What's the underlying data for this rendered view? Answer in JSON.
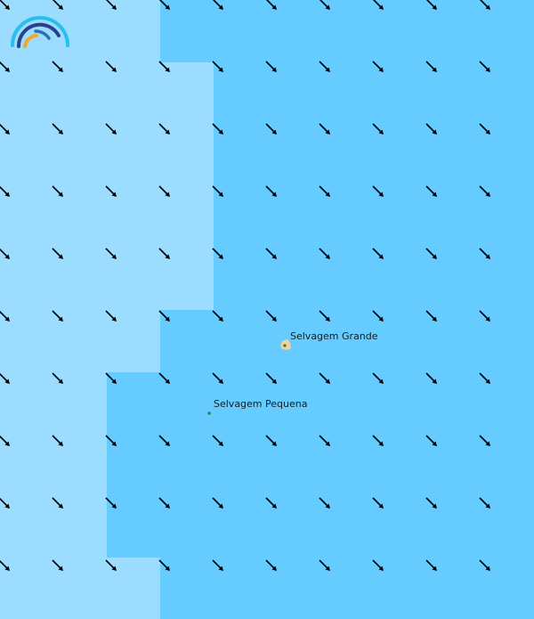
{
  "map": {
    "colors": {
      "deep": "#66ccff",
      "shallow": "#9cdcfe",
      "land": "#f5cfa0",
      "marker": "#1a8a1a",
      "arrow": "#000000"
    },
    "arrow_direction": "south-east",
    "places": [
      {
        "name": "Selvagem Grande",
        "type": "island"
      },
      {
        "name": "Selvagem Pequena",
        "type": "islet"
      }
    ],
    "logo": "rainbow-arc-logo"
  }
}
